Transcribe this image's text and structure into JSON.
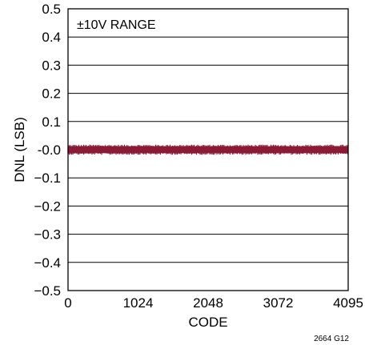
{
  "chart_data": {
    "type": "line",
    "title": "",
    "xlabel": "CODE",
    "ylabel": "DNL (LSB)",
    "xlim": [
      0,
      4095
    ],
    "ylim": [
      -0.5,
      0.5
    ],
    "x_ticks": [
      0,
      1024,
      2048,
      3072,
      4095
    ],
    "x_tick_labels": [
      "0",
      "1024",
      "2048",
      "3072",
      "4095"
    ],
    "y_ticks": [
      0.5,
      0.4,
      0.3,
      0.2,
      0.1,
      0.0,
      -0.1,
      -0.2,
      -0.3,
      -0.4,
      -0.5
    ],
    "y_tick_labels": [
      "0.5",
      "0.4",
      "0.3",
      "0.2",
      "0.1",
      "-0.0",
      "−0.1",
      "−0.2",
      "−0.3",
      "−0.4",
      "−0.5"
    ],
    "grid": "horizontal",
    "annotation": "±10V RANGE",
    "figure_id": "2664 G12",
    "series": [
      {
        "color": "#8b1a36",
        "x_range": [
          0,
          4095
        ],
        "mean": 0.0,
        "band": [
          -0.012,
          0.012
        ]
      }
    ]
  }
}
